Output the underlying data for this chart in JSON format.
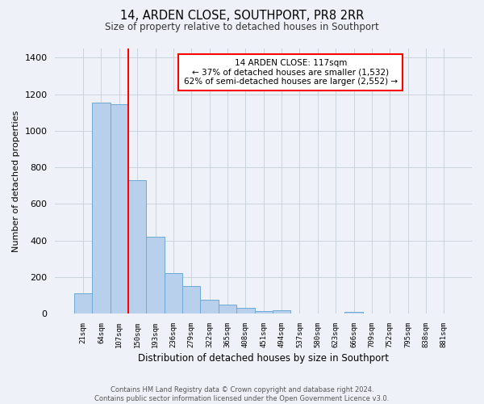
{
  "title1": "14, ARDEN CLOSE, SOUTHPORT, PR8 2RR",
  "title2": "Size of property relative to detached houses in Southport",
  "xlabel": "Distribution of detached houses by size in Southport",
  "ylabel": "Number of detached properties",
  "bar_labels": [
    "21sqm",
    "64sqm",
    "107sqm",
    "150sqm",
    "193sqm",
    "236sqm",
    "279sqm",
    "322sqm",
    "365sqm",
    "408sqm",
    "451sqm",
    "494sqm",
    "537sqm",
    "580sqm",
    "623sqm",
    "666sqm",
    "709sqm",
    "752sqm",
    "795sqm",
    "838sqm",
    "881sqm"
  ],
  "bar_values": [
    110,
    1155,
    1145,
    730,
    420,
    220,
    150,
    75,
    50,
    30,
    15,
    20,
    0,
    0,
    0,
    10,
    0,
    0,
    0,
    0,
    0
  ],
  "bar_color": "#b8d0eb",
  "bar_edgecolor": "#6aaad4",
  "vline_color": "red",
  "ylim": [
    0,
    1450
  ],
  "yticks": [
    0,
    200,
    400,
    600,
    800,
    1000,
    1200,
    1400
  ],
  "annotation_title": "14 ARDEN CLOSE: 117sqm",
  "annotation_line1": "← 37% of detached houses are smaller (1,532)",
  "annotation_line2": "62% of semi-detached houses are larger (2,552) →",
  "annotation_box_color": "white",
  "annotation_box_edgecolor": "red",
  "footer1": "Contains HM Land Registry data © Crown copyright and database right 2024.",
  "footer2": "Contains public sector information licensed under the Open Government Licence v3.0.",
  "bg_color": "#eef2f8"
}
